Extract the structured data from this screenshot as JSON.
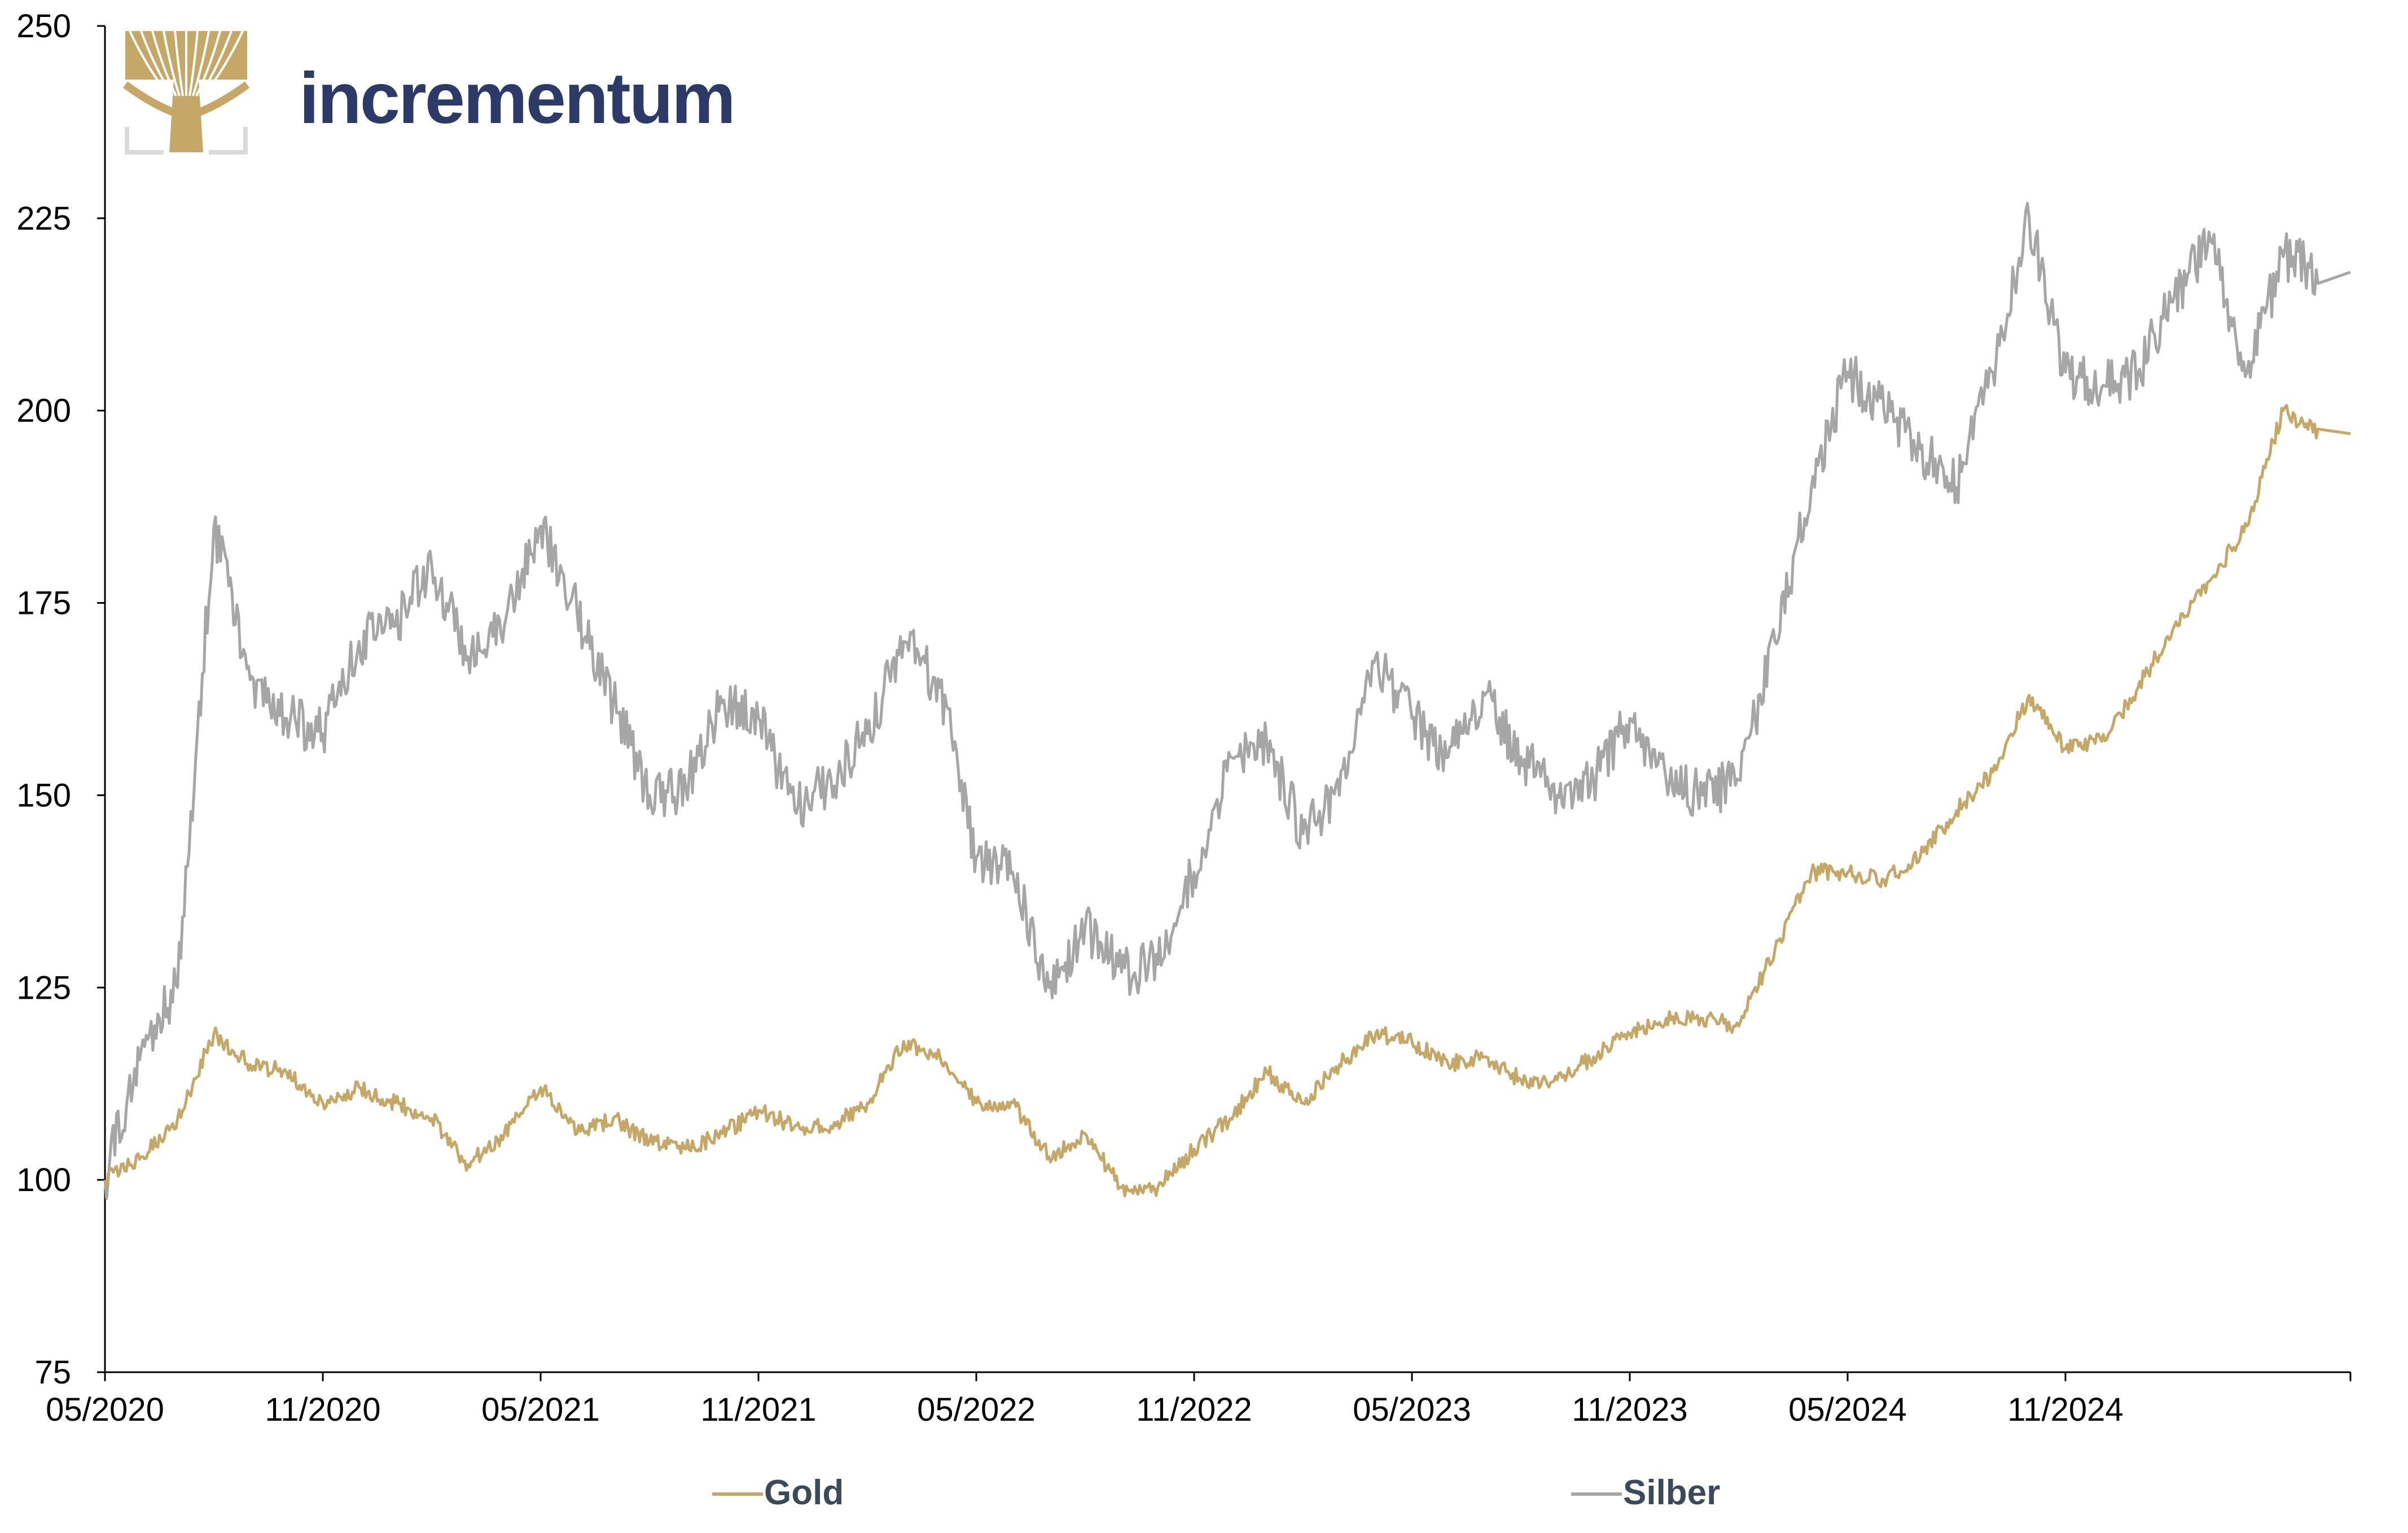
{
  "brand": {
    "name": "incrementum",
    "logo_icon": "tree-icon",
    "text_color": "#2b3a66",
    "logo_color": "#c5a867"
  },
  "chart_data": {
    "type": "line",
    "title": "",
    "xlabel": "",
    "ylabel": "",
    "ylim": [
      75,
      250
    ],
    "y_ticks": [
      "75",
      "100",
      "125",
      "150",
      "175",
      "200",
      "225",
      "250"
    ],
    "x_ticks": [
      "05/2020",
      "11/2020",
      "05/2021",
      "11/2021",
      "05/2022",
      "11/2022",
      "05/2023",
      "11/2023",
      "05/2024",
      "11/2024"
    ],
    "x_range": [
      "05/2020",
      "06/2025"
    ],
    "grid": false,
    "legend_position": "bottom",
    "series": [
      {
        "name": "Gold",
        "color": "#c5a867",
        "points": [
          [
            "05/2020",
            100
          ],
          [
            "06/2020",
            103
          ],
          [
            "07/2020",
            108
          ],
          [
            "08/2020",
            119
          ],
          [
            "09/2020",
            115
          ],
          [
            "10/2020",
            114
          ],
          [
            "11/2020",
            110
          ],
          [
            "12/2020",
            112
          ],
          [
            "01/2021",
            110
          ],
          [
            "02/2021",
            108
          ],
          [
            "03/2021",
            102
          ],
          [
            "04/2021",
            106
          ],
          [
            "05/2021",
            112
          ],
          [
            "06/2021",
            106
          ],
          [
            "07/2021",
            108
          ],
          [
            "08/2021",
            105
          ],
          [
            "09/2021",
            104
          ],
          [
            "10/2021",
            106
          ],
          [
            "11/2021",
            109
          ],
          [
            "12/2021",
            107
          ],
          [
            "01/2022",
            107
          ],
          [
            "02/2022",
            110
          ],
          [
            "03/2022",
            118
          ],
          [
            "04/2022",
            116
          ],
          [
            "05/2022",
            110
          ],
          [
            "06/2022",
            110
          ],
          [
            "07/2022",
            103
          ],
          [
            "08/2022",
            106
          ],
          [
            "09/2022",
            99
          ],
          [
            "10/2022",
            99
          ],
          [
            "11/2022",
            104
          ],
          [
            "12/2022",
            108
          ],
          [
            "01/2023",
            114
          ],
          [
            "02/2023",
            110
          ],
          [
            "03/2023",
            115
          ],
          [
            "04/2023",
            119
          ],
          [
            "05/2023",
            118
          ],
          [
            "06/2023",
            115
          ],
          [
            "07/2023",
            116
          ],
          [
            "08/2023",
            113
          ],
          [
            "09/2023",
            113
          ],
          [
            "10/2023",
            116
          ],
          [
            "11/2023",
            119
          ],
          [
            "12/2023",
            121
          ],
          [
            "01/2024",
            121
          ],
          [
            "02/2024",
            120
          ],
          [
            "03/2024",
            130
          ],
          [
            "04/2024",
            140
          ],
          [
            "05/2024",
            140
          ],
          [
            "06/2024",
            139
          ],
          [
            "07/2024",
            142
          ],
          [
            "08/2024",
            148
          ],
          [
            "09/2024",
            153
          ],
          [
            "10/2024",
            163
          ],
          [
            "11/2024",
            156
          ],
          [
            "12/2024",
            157
          ],
          [
            "01/2025",
            164
          ],
          [
            "02/2025",
            172
          ],
          [
            "03/2025",
            178
          ],
          [
            "04/2025",
            185
          ],
          [
            "05/2025",
            200
          ],
          [
            "06/2025",
            197
          ]
        ]
      },
      {
        "name": "Silber",
        "color": "#a6a6a6",
        "points": [
          [
            "05/2020",
            100
          ],
          [
            "06/2020",
            117
          ],
          [
            "07/2020",
            125
          ],
          [
            "08/2020",
            185
          ],
          [
            "09/2020",
            165
          ],
          [
            "10/2020",
            160
          ],
          [
            "11/2020",
            158
          ],
          [
            "12/2020",
            170
          ],
          [
            "01/2021",
            172
          ],
          [
            "02/2021",
            180
          ],
          [
            "03/2021",
            168
          ],
          [
            "04/2021",
            172
          ],
          [
            "05/2021",
            185
          ],
          [
            "06/2021",
            174
          ],
          [
            "07/2021",
            162
          ],
          [
            "08/2021",
            150
          ],
          [
            "09/2021",
            151
          ],
          [
            "10/2021",
            162
          ],
          [
            "11/2021",
            160
          ],
          [
            "12/2021",
            148
          ],
          [
            "01/2022",
            152
          ],
          [
            "02/2022",
            158
          ],
          [
            "03/2022",
            170
          ],
          [
            "04/2022",
            164
          ],
          [
            "05/2022",
            142
          ],
          [
            "06/2022",
            140
          ],
          [
            "07/2022",
            125
          ],
          [
            "08/2022",
            133
          ],
          [
            "09/2022",
            127
          ],
          [
            "10/2022",
            128
          ],
          [
            "11/2022",
            140
          ],
          [
            "12/2022",
            155
          ],
          [
            "01/2023",
            157
          ],
          [
            "02/2023",
            145
          ],
          [
            "03/2023",
            150
          ],
          [
            "04/2023",
            168
          ],
          [
            "05/2023",
            160
          ],
          [
            "06/2023",
            155
          ],
          [
            "07/2023",
            163
          ],
          [
            "08/2023",
            155
          ],
          [
            "09/2023",
            150
          ],
          [
            "10/2023",
            152
          ],
          [
            "11/2023",
            160
          ],
          [
            "12/2023",
            152
          ],
          [
            "01/2024",
            150
          ],
          [
            "02/2024",
            152
          ],
          [
            "03/2024",
            170
          ],
          [
            "04/2024",
            190
          ],
          [
            "05/2024",
            205
          ],
          [
            "06/2024",
            200
          ],
          [
            "07/2024",
            195
          ],
          [
            "08/2024",
            190
          ],
          [
            "09/2024",
            205
          ],
          [
            "10/2024",
            225
          ],
          [
            "11/2024",
            205
          ],
          [
            "12/2024",
            203
          ],
          [
            "01/2025",
            205
          ],
          [
            "02/2025",
            215
          ],
          [
            "03/2025",
            222
          ],
          [
            "04/2025",
            205
          ],
          [
            "05/2025",
            220
          ],
          [
            "06/2025",
            218
          ]
        ]
      }
    ]
  }
}
